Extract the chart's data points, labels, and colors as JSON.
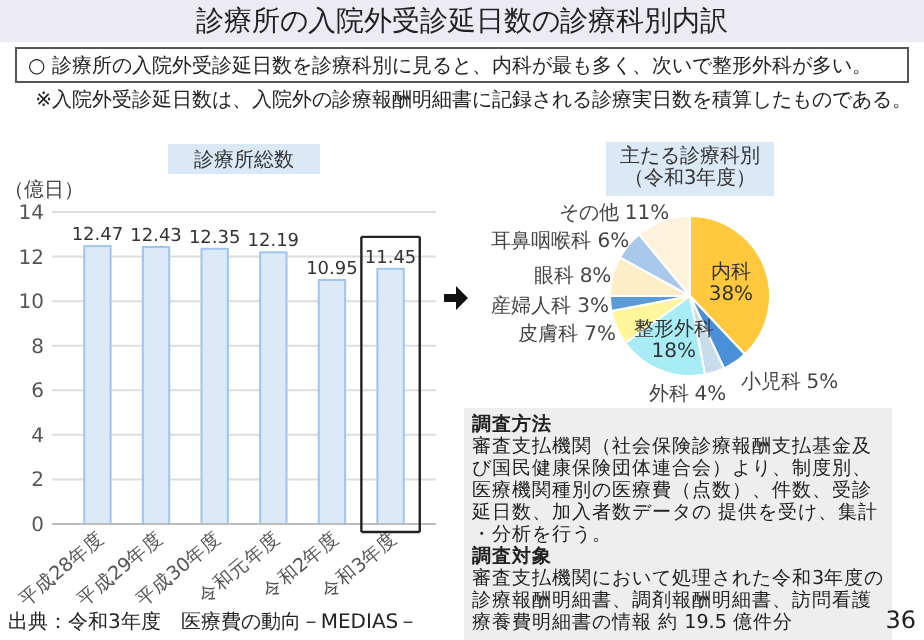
{
  "chart_data": [
    {
      "type": "bar",
      "title": "診療所総数",
      "ylabel": "（億日）",
      "categories": [
        "平成28年度",
        "平成29年度",
        "平成30年度",
        "令和元年度",
        "令和2年度",
        "令和3年度"
      ],
      "values": [
        12.47,
        12.43,
        12.35,
        12.19,
        10.95,
        11.45
      ],
      "color": "#dbe9f8",
      "ylim": [
        0,
        14
      ],
      "yticks": [
        0,
        2,
        4,
        6,
        8,
        10,
        12,
        14
      ],
      "grid": "y",
      "data_labels": true,
      "annotations": [
        "診療所の入院外受診延日数の診療科別内訳",
        "○ 診療所の入院外受診延日数を診療科別に見ると、内科が最も多く、次いで整形外科が多い。",
        "※入院外受診延日数は、入院外の診療報酬明細書に記録される診療実日数を積算したものである。",
        "出典：令和3年度　医療費の動向－MEDIAS－"
      ]
    },
    {
      "type": "pie",
      "title": "主たる診療科別（令和3年度）",
      "categories": [
        "内科",
        "小児科",
        "外科",
        "整形外科",
        "皮膚科",
        "産婦人科",
        "眼科",
        "耳鼻咽喉科",
        "その他"
      ],
      "values": [
        38,
        5,
        4,
        18,
        7,
        3,
        8,
        6,
        11
      ],
      "colors": [
        "#ffc83d",
        "#4a90d9",
        "#c9dcee",
        "#a8ecf5",
        "#fff59a",
        "#5b9bd5",
        "#fdeec8",
        "#a9c8ec",
        "#fdf3dc"
      ],
      "value_labels": [
        "38%",
        "5%",
        "4%",
        "18%",
        "7%",
        "3%",
        "8%",
        "6%",
        "11%"
      ],
      "annotations": [
        "調査方法",
        "審査支払機関（社会保険診療報酬支払基金及び国民健康保険団体連合会）より、制度別、医療機関種別の医療費（点数）、件数、受診延日数、加入者数データの 提供を受け、集計・分析を行う。",
        "調査対象",
        "審査支払機関において処理された令和3年度の診療報酬明細書、調剤報酬明細書、訪問看護療養費明細書の情報 約 19.5 億件分",
        "36"
      ]
    }
  ]
}
